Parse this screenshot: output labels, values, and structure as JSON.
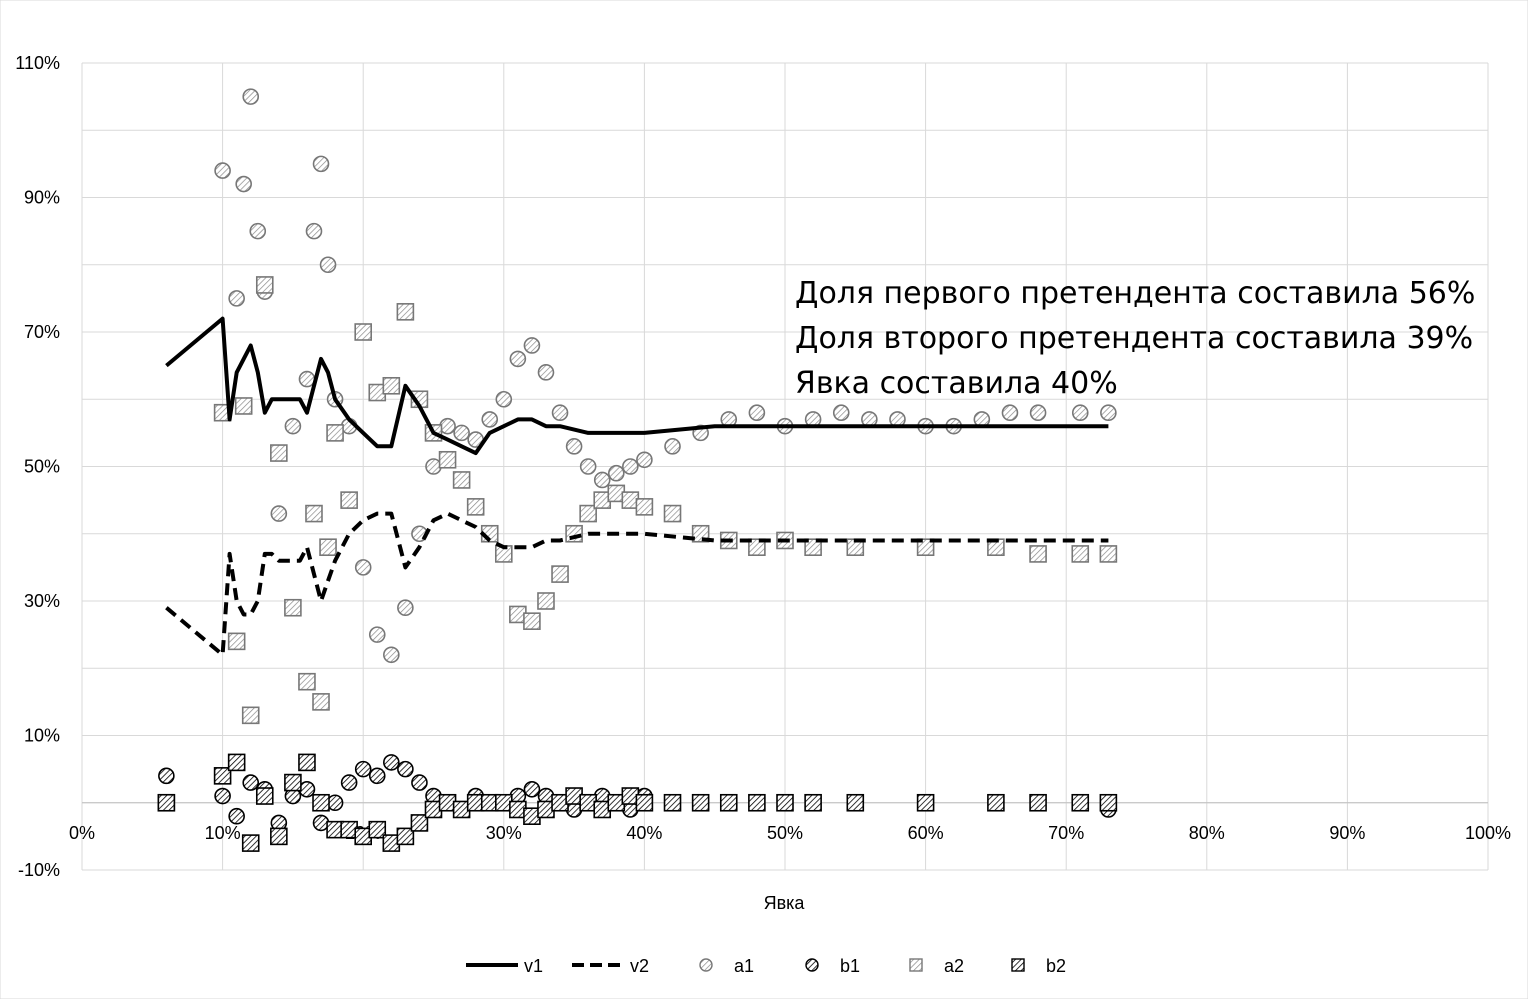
{
  "chart_data": {
    "type": "scatter",
    "xlabel": "Явка",
    "xlim": [
      0,
      1
    ],
    "ylim": [
      -0.1,
      1.1
    ],
    "x_ticks": [
      "0%",
      "10%",
      "20%",
      "30%",
      "40%",
      "50%",
      "60%",
      "70%",
      "80%",
      "90%",
      "100%"
    ],
    "y_ticks": [
      "-10%",
      "10%",
      "30%",
      "50%",
      "70%",
      "90%",
      "110%"
    ],
    "grid": true,
    "legend_position": "bottom",
    "annotations": [
      "Доля первого претендента составила 56%",
      "Доля второго претендента составила 39%",
      "Явка составила 40%"
    ],
    "series": [
      {
        "name": "v1",
        "style": "solid-line",
        "x": [
          0.06,
          0.1,
          0.105,
          0.11,
          0.115,
          0.12,
          0.125,
          0.13,
          0.135,
          0.14,
          0.155,
          0.16,
          0.17,
          0.175,
          0.18,
          0.19,
          0.2,
          0.21,
          0.22,
          0.23,
          0.24,
          0.25,
          0.26,
          0.27,
          0.28,
          0.29,
          0.3,
          0.31,
          0.32,
          0.33,
          0.34,
          0.36,
          0.38,
          0.4,
          0.45,
          0.5,
          0.55,
          0.6,
          0.65,
          0.7,
          0.73
        ],
        "y": [
          0.65,
          0.72,
          0.57,
          0.64,
          0.66,
          0.68,
          0.64,
          0.58,
          0.6,
          0.6,
          0.6,
          0.58,
          0.66,
          0.64,
          0.6,
          0.57,
          0.55,
          0.53,
          0.53,
          0.62,
          0.59,
          0.55,
          0.54,
          0.53,
          0.52,
          0.55,
          0.56,
          0.57,
          0.57,
          0.56,
          0.56,
          0.55,
          0.55,
          0.55,
          0.56,
          0.56,
          0.56,
          0.56,
          0.56,
          0.56,
          0.56
        ]
      },
      {
        "name": "v2",
        "style": "dashed-line",
        "x": [
          0.06,
          0.1,
          0.105,
          0.11,
          0.115,
          0.12,
          0.125,
          0.13,
          0.135,
          0.14,
          0.155,
          0.16,
          0.17,
          0.175,
          0.18,
          0.19,
          0.2,
          0.21,
          0.22,
          0.23,
          0.24,
          0.25,
          0.26,
          0.27,
          0.28,
          0.29,
          0.3,
          0.31,
          0.32,
          0.33,
          0.34,
          0.36,
          0.38,
          0.4,
          0.45,
          0.5,
          0.55,
          0.6,
          0.65,
          0.7,
          0.73
        ],
        "y": [
          0.29,
          0.22,
          0.37,
          0.3,
          0.28,
          0.28,
          0.3,
          0.37,
          0.37,
          0.36,
          0.36,
          0.38,
          0.3,
          0.33,
          0.36,
          0.4,
          0.42,
          0.43,
          0.43,
          0.35,
          0.38,
          0.42,
          0.43,
          0.42,
          0.41,
          0.39,
          0.38,
          0.38,
          0.38,
          0.39,
          0.39,
          0.4,
          0.4,
          0.4,
          0.39,
          0.39,
          0.39,
          0.39,
          0.39,
          0.39,
          0.39
        ]
      },
      {
        "name": "a1",
        "style": "hatched-circle-light",
        "x": [
          0.1,
          0.11,
          0.115,
          0.12,
          0.125,
          0.13,
          0.14,
          0.15,
          0.16,
          0.165,
          0.17,
          0.175,
          0.18,
          0.19,
          0.2,
          0.21,
          0.22,
          0.23,
          0.24,
          0.25,
          0.26,
          0.27,
          0.28,
          0.29,
          0.3,
          0.31,
          0.32,
          0.33,
          0.34,
          0.35,
          0.36,
          0.37,
          0.38,
          0.39,
          0.4,
          0.42,
          0.44,
          0.46,
          0.48,
          0.5,
          0.52,
          0.54,
          0.56,
          0.58,
          0.6,
          0.62,
          0.64,
          0.66,
          0.68,
          0.71,
          0.73
        ],
        "y": [
          0.94,
          0.75,
          0.92,
          1.05,
          0.85,
          0.76,
          0.43,
          0.56,
          0.63,
          0.85,
          0.95,
          0.8,
          0.6,
          0.56,
          0.35,
          0.25,
          0.22,
          0.29,
          0.4,
          0.5,
          0.56,
          0.55,
          0.54,
          0.57,
          0.6,
          0.66,
          0.68,
          0.64,
          0.58,
          0.53,
          0.5,
          0.48,
          0.49,
          0.5,
          0.51,
          0.53,
          0.55,
          0.57,
          0.58,
          0.56,
          0.57,
          0.58,
          0.57,
          0.57,
          0.56,
          0.56,
          0.57,
          0.58,
          0.58,
          0.58,
          0.58
        ]
      },
      {
        "name": "b1",
        "style": "hatched-circle-dark",
        "x": [
          0.06,
          0.1,
          0.11,
          0.12,
          0.13,
          0.14,
          0.15,
          0.16,
          0.17,
          0.18,
          0.19,
          0.2,
          0.21,
          0.22,
          0.23,
          0.24,
          0.25,
          0.26,
          0.27,
          0.28,
          0.29,
          0.3,
          0.31,
          0.32,
          0.33,
          0.34,
          0.35,
          0.36,
          0.37,
          0.38,
          0.39,
          0.4,
          0.42,
          0.44,
          0.46,
          0.48,
          0.5,
          0.52,
          0.55,
          0.6,
          0.65,
          0.68,
          0.71,
          0.73
        ],
        "y": [
          0.04,
          0.01,
          -0.02,
          0.03,
          0.02,
          -0.03,
          0.01,
          0.02,
          -0.03,
          0.0,
          0.03,
          0.05,
          0.04,
          0.06,
          0.05,
          0.03,
          0.01,
          0.0,
          -0.01,
          0.01,
          0.0,
          0.0,
          0.01,
          0.02,
          0.01,
          0.0,
          -0.01,
          0.0,
          0.01,
          0.0,
          -0.01,
          0.01,
          0.0,
          0.0,
          0.0,
          0.0,
          0.0,
          0.0,
          0.0,
          0.0,
          0.0,
          0.0,
          0.0,
          -0.01
        ]
      },
      {
        "name": "a2",
        "style": "hatched-square-light",
        "x": [
          0.06,
          0.1,
          0.11,
          0.115,
          0.12,
          0.13,
          0.14,
          0.15,
          0.16,
          0.165,
          0.17,
          0.175,
          0.18,
          0.19,
          0.2,
          0.21,
          0.22,
          0.23,
          0.24,
          0.25,
          0.26,
          0.27,
          0.28,
          0.29,
          0.3,
          0.31,
          0.32,
          0.33,
          0.34,
          0.35,
          0.36,
          0.37,
          0.38,
          0.39,
          0.4,
          0.42,
          0.44,
          0.46,
          0.48,
          0.5,
          0.52,
          0.55,
          0.6,
          0.65,
          0.68,
          0.71,
          0.73
        ],
        "y": [
          0.0,
          0.58,
          0.24,
          0.59,
          0.13,
          0.77,
          0.52,
          0.29,
          0.18,
          0.43,
          0.15,
          0.38,
          0.55,
          0.45,
          0.7,
          0.61,
          0.62,
          0.73,
          0.6,
          0.55,
          0.51,
          0.48,
          0.44,
          0.4,
          0.37,
          0.28,
          0.27,
          0.3,
          0.34,
          0.4,
          0.43,
          0.45,
          0.46,
          0.45,
          0.44,
          0.43,
          0.4,
          0.39,
          0.38,
          0.39,
          0.38,
          0.38,
          0.38,
          0.38,
          0.37,
          0.37,
          0.37
        ]
      },
      {
        "name": "b2",
        "style": "hatched-square-dark",
        "x": [
          0.06,
          0.1,
          0.11,
          0.12,
          0.13,
          0.14,
          0.15,
          0.16,
          0.17,
          0.18,
          0.19,
          0.2,
          0.21,
          0.22,
          0.23,
          0.24,
          0.25,
          0.26,
          0.27,
          0.28,
          0.29,
          0.3,
          0.31,
          0.32,
          0.33,
          0.34,
          0.35,
          0.36,
          0.37,
          0.38,
          0.39,
          0.4,
          0.42,
          0.44,
          0.46,
          0.48,
          0.5,
          0.52,
          0.55,
          0.6,
          0.65,
          0.68,
          0.71,
          0.73
        ],
        "y": [
          0.0,
          0.04,
          0.06,
          -0.06,
          0.01,
          -0.05,
          0.03,
          0.06,
          0.0,
          -0.04,
          -0.04,
          -0.05,
          -0.04,
          -0.06,
          -0.05,
          -0.03,
          -0.01,
          0.0,
          -0.01,
          0.0,
          0.0,
          0.0,
          -0.01,
          -0.02,
          -0.01,
          0.0,
          0.01,
          0.0,
          -0.01,
          0.0,
          0.01,
          0.0,
          0.0,
          0.0,
          0.0,
          0.0,
          0.0,
          0.0,
          0.0,
          0.0,
          0.0,
          0.0,
          0.0,
          0.0
        ]
      }
    ]
  }
}
